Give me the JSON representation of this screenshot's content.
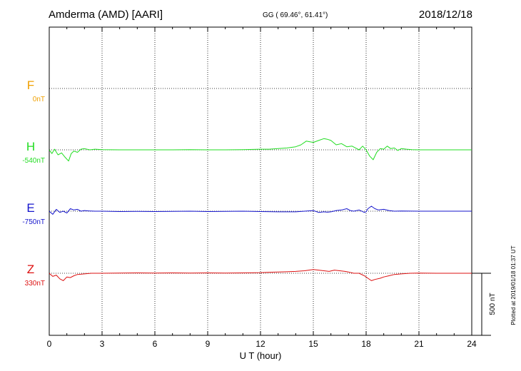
{
  "header": {
    "station": "Amderma (AMD)  [AARI]",
    "coords": "GG ( 69.46°,  61.41°)",
    "date": "2018/12/18"
  },
  "footer_note": "Plotted at 2019/01/18 01:37 UT",
  "scale_bar_label": "500 nT",
  "colors": {
    "F": "#f0a000",
    "H": "#22dd22",
    "E": "#1515cc",
    "Z": "#dd1111",
    "grid": "#000000"
  },
  "chart_data": {
    "type": "line",
    "xlabel": "U T (hour)",
    "ylabel": "",
    "xlim": [
      0,
      24
    ],
    "x_ticks": [
      "0",
      "3",
      "6",
      "9",
      "12",
      "15",
      "18",
      "21",
      "24"
    ],
    "scale_nT": 500,
    "series": [
      {
        "name": "F",
        "baseline_label": "0nT",
        "x": [],
        "values": []
      },
      {
        "name": "H",
        "baseline_label": "-540nT",
        "x": [
          0,
          0.15,
          0.3,
          0.5,
          0.7,
          0.9,
          1.1,
          1.25,
          1.4,
          1.6,
          1.8,
          2.0,
          2.3,
          2.6,
          3,
          4,
          5,
          6,
          7,
          8,
          9,
          10,
          11,
          12,
          12.5,
          13,
          13.5,
          14,
          14.3,
          14.6,
          15.0,
          15.3,
          15.6,
          15.8,
          16.0,
          16.3,
          16.6,
          16.9,
          17.2,
          17.4,
          17.6,
          17.8,
          18.0,
          18.2,
          18.4,
          18.6,
          18.8,
          19.0,
          19.2,
          19.4,
          19.6,
          19.8,
          20.0,
          20.3,
          20.6,
          21,
          22,
          23,
          24
        ],
        "values": [
          0,
          -30,
          5,
          -40,
          -25,
          -60,
          -90,
          -30,
          -10,
          -20,
          5,
          10,
          0,
          5,
          2,
          0,
          0,
          0,
          0,
          2,
          0,
          0,
          2,
          5,
          5,
          10,
          15,
          25,
          40,
          70,
          60,
          75,
          90,
          85,
          75,
          40,
          50,
          25,
          30,
          15,
          0,
          30,
          0,
          -50,
          -80,
          -20,
          10,
          5,
          30,
          10,
          15,
          -5,
          10,
          5,
          2,
          0,
          0,
          0,
          0
        ]
      },
      {
        "name": "E",
        "baseline_label": "-750nT",
        "x": [
          0,
          0.2,
          0.4,
          0.6,
          0.8,
          1.0,
          1.2,
          1.4,
          1.6,
          1.8,
          2.0,
          2.3,
          2.6,
          3,
          4,
          5,
          6,
          7,
          8,
          9,
          10,
          11,
          12,
          13,
          14,
          15,
          15.3,
          15.6,
          15.8,
          16.0,
          16.3,
          16.6,
          16.9,
          17.1,
          17.3,
          17.6,
          17.9,
          18.0,
          18.1,
          18.3,
          18.5,
          18.7,
          19.0,
          19.3,
          19.6,
          20,
          21,
          22,
          23,
          24
        ],
        "values": [
          0,
          -25,
          15,
          -10,
          0,
          -15,
          20,
          10,
          15,
          0,
          5,
          2,
          0,
          0,
          -3,
          -2,
          -3,
          -2,
          0,
          -3,
          -2,
          0,
          -3,
          -5,
          -5,
          5,
          -10,
          -5,
          -8,
          -5,
          5,
          10,
          20,
          5,
          0,
          10,
          -10,
          -5,
          20,
          40,
          20,
          10,
          15,
          5,
          0,
          2,
          0,
          0,
          0,
          0
        ]
      },
      {
        "name": "Z",
        "baseline_label": "330nT",
        "x": [
          0,
          0.2,
          0.4,
          0.6,
          0.8,
          1.0,
          1.2,
          1.4,
          1.6,
          2.0,
          2.4,
          3,
          4,
          5,
          6,
          7,
          8,
          9,
          10,
          11,
          12,
          12.5,
          13,
          13.5,
          14,
          14.5,
          15.0,
          15.3,
          15.6,
          15.9,
          16.2,
          16.5,
          16.8,
          17.0,
          17.3,
          17.6,
          17.9,
          18.1,
          18.3,
          18.5,
          18.8,
          19.0,
          19.3,
          19.6,
          20,
          20.5,
          21,
          22,
          23,
          24
        ],
        "values": [
          0,
          -25,
          -15,
          -45,
          -60,
          -30,
          -35,
          -20,
          -10,
          -5,
          0,
          0,
          2,
          3,
          2,
          3,
          2,
          3,
          2,
          3,
          5,
          8,
          10,
          12,
          15,
          20,
          30,
          25,
          20,
          15,
          25,
          20,
          15,
          10,
          0,
          0,
          -20,
          -40,
          -60,
          -50,
          -40,
          -30,
          -20,
          -10,
          -5,
          0,
          2,
          0,
          0,
          0
        ]
      }
    ]
  }
}
